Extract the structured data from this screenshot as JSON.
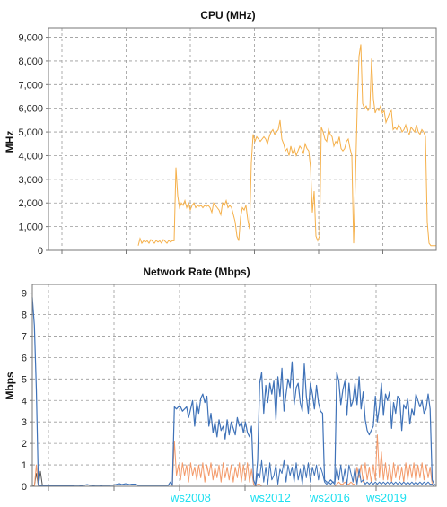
{
  "colors": {
    "cpu_line": "#f5b04a",
    "baseline": "#3a3ac0",
    "net_blue": "#3f72b8",
    "net_orange": "#f39a6a",
    "net_gray": "#555555",
    "grid": "#9a9a9a",
    "annotation": "#1fe0f0"
  },
  "chart_data": [
    {
      "type": "line",
      "title": "CPU (MHz)",
      "ylabel": "MHz",
      "xlabel": "",
      "ylim": [
        0,
        9400
      ],
      "yticks": [
        0,
        1000,
        2000,
        3000,
        4000,
        5000,
        6000,
        7000,
        8000,
        9000
      ],
      "ytick_labels": [
        "0",
        "1,000",
        "2,000",
        "3,000",
        "4,000",
        "5,000",
        "6,000",
        "7,000",
        "8,000",
        "9,000"
      ],
      "grid": true,
      "series": [
        {
          "values": [
            0,
            0,
            0,
            0,
            0,
            0,
            0,
            0,
            0,
            0,
            0,
            0,
            0,
            0,
            0,
            0,
            0,
            0,
            0,
            0,
            0,
            0,
            0,
            0,
            0,
            0,
            0,
            0,
            0,
            0,
            0,
            0,
            0,
            0,
            0,
            0,
            0,
            0,
            0,
            0,
            0,
            0,
            0,
            0,
            0,
            0,
            0,
            0,
            0,
            0,
            200,
            500,
            300,
            400,
            350,
            400,
            300,
            450,
            380,
            300,
            420,
            350,
            400,
            300,
            450,
            380,
            300,
            420,
            350,
            400,
            400,
            3500,
            2300,
            1800,
            2000,
            1900,
            2100,
            1800,
            2000,
            1700,
            1900,
            2000,
            1800,
            1900,
            1850,
            1900,
            1800,
            1900,
            1850,
            1900,
            1800,
            1600,
            2000,
            1900,
            1800,
            1700,
            1500,
            2000,
            1900,
            2100,
            1800,
            1900,
            1800,
            1500,
            1200,
            600,
            400,
            1400,
            1800,
            1700,
            1900,
            1300,
            900,
            3700,
            4900,
            4600,
            4800,
            4700,
            4600,
            4700,
            4800,
            4700,
            4500,
            4800,
            5000,
            5100,
            4900,
            5000,
            5100,
            5500,
            4700,
            4500,
            4200,
            4300,
            4000,
            4400,
            4100,
            4300,
            4000,
            4200,
            4400,
            4300,
            4100,
            4500,
            4300,
            4200,
            3500,
            1600,
            2500,
            600,
            400,
            600,
            5200,
            5000,
            4700,
            4600,
            5100,
            4900,
            4800,
            4400,
            4600,
            4500,
            4800,
            4300,
            4200,
            4300,
            4600,
            4700,
            4300,
            4000,
            300,
            3000,
            6000,
            8200,
            8700,
            6200,
            6000,
            6100,
            5900,
            6000,
            8100,
            6400,
            5800,
            6000,
            5900,
            6100,
            5800,
            5900,
            5400,
            5600,
            5800,
            5900,
            5100,
            5200,
            5100,
            5300,
            5200,
            5000,
            5100,
            5300,
            5000,
            4900,
            5200,
            5100,
            5000,
            5300,
            5000,
            4900,
            5100,
            5000,
            4800,
            1200,
            300,
            200,
            200,
            200,
            200
          ]
        }
      ]
    },
    {
      "type": "line",
      "title": "Network Rate (Mbps)",
      "ylabel": "Mbps",
      "xlabel": "",
      "ylim": [
        0,
        9.4
      ],
      "yticks": [
        0,
        1,
        2,
        3,
        4,
        5,
        6,
        7,
        8,
        9
      ],
      "ytick_labels": [
        "0",
        "1",
        "2",
        "3",
        "4",
        "5",
        "6",
        "7",
        "8",
        "9"
      ],
      "grid": true,
      "annotations": [
        "ws2008",
        "ws2012",
        "ws2016",
        "ws2019"
      ],
      "series": [
        {
          "color_key": "net_blue",
          "values": [
            8.8,
            7.5,
            4.5,
            0.05,
            0.04,
            0.03,
            0.03,
            0.05,
            0.04,
            0.03,
            0.04,
            0.04,
            0.05,
            0.04,
            0.03,
            0.05,
            0.04,
            0.05,
            0.04,
            0.03,
            0.04,
            0.05,
            0.06,
            0.05,
            0.04,
            0.05,
            0.06,
            0.08,
            0.06,
            0.05,
            0.04,
            0.05,
            0.06,
            0.05,
            0.04,
            0.06,
            0.05,
            0.06,
            0.05,
            0.06,
            0.06,
            0.08,
            0.1,
            0.12,
            0.08,
            0.1,
            0.12,
            0.1,
            0.08,
            0.1,
            0.1,
            0.1,
            0.05,
            0.05,
            0.05,
            0.05,
            0.05,
            0.05,
            0.05,
            0.05,
            0.05,
            0.05,
            0.05,
            0.05,
            0.05,
            0.05,
            0.05,
            0.05,
            0.2,
            0.05,
            3.7,
            3.6,
            3.7,
            3.7,
            3.5,
            3.6,
            3.7,
            3.2,
            3.6,
            4.0,
            2.8,
            3.9,
            3.4,
            4.1,
            4.3,
            3.9,
            4.2,
            2.8,
            3.4,
            2.5,
            3.0,
            2.3,
            3.1,
            2.6,
            2.8,
            2.2,
            3.1,
            2.4,
            3.0,
            2.7,
            2.4,
            3.2,
            2.8,
            3.0,
            2.5,
            3.0,
            2.5,
            2.3,
            2.8,
            0.3,
            0.05,
            1.2,
            4.8,
            5.3,
            3.4,
            4.7,
            3.9,
            4.8,
            4.3,
            4.9,
            3.1,
            5.1,
            4.2,
            5.5,
            3.5,
            4.3,
            5.0,
            4.6,
            5.8,
            3.8,
            4.6,
            4.8,
            3.9,
            3.5,
            5.7,
            4.2,
            3.4,
            4.8,
            4.3,
            3.6,
            4.7,
            3.9,
            3.5,
            3.4,
            0.3,
            0.2,
            0.2,
            0.3,
            0.2,
            0.2,
            5.3,
            4.9,
            3.8,
            4.5,
            4.9,
            3.3,
            4.8,
            3.7,
            4.0,
            4.8,
            3.8,
            5.1,
            3.6,
            4.4,
            3.1,
            2.6,
            2.4,
            2.6,
            2.8,
            4.2,
            3.0,
            3.7,
            4.8,
            3.3,
            4.3,
            4.0,
            4.4,
            2.7,
            3.9,
            3.4,
            4.2,
            4.1,
            2.6,
            3.8,
            3.6,
            4.1,
            2.9,
            3.6,
            3.3,
            4.3,
            4.0,
            3.7,
            4.0,
            3.4,
            3.6,
            4.3,
            3.6,
            0.3,
            0.1,
            0.05
          ]
        },
        {
          "color_key": "net_orange",
          "values": [
            0,
            0,
            1.0,
            0,
            0,
            0,
            0,
            0,
            0,
            0,
            0,
            0,
            0,
            0,
            0,
            0,
            0,
            0,
            0,
            0,
            0,
            0,
            0,
            0,
            0,
            0,
            0,
            0,
            0,
            0,
            0,
            0,
            0,
            0,
            0,
            0,
            0,
            0,
            0,
            0,
            0,
            0,
            0,
            0,
            0,
            0,
            0,
            0,
            0,
            0,
            0,
            0,
            0,
            0,
            0,
            0,
            0,
            0,
            0,
            0,
            0,
            0,
            0,
            0,
            0,
            0,
            0,
            0,
            0,
            0,
            2.1,
            0.5,
            1.0,
            0.3,
            1.1,
            0.5,
            1.0,
            0.2,
            1.1,
            0.5,
            0.9,
            0.3,
            1.0,
            0.4,
            1.1,
            0.2,
            1.0,
            0.5,
            1.1,
            0.3,
            0.9,
            0.4,
            1.0,
            0.2,
            1.1,
            0.4,
            0.9,
            0.3,
            1.0,
            0.2,
            0.9,
            0.4,
            1.1,
            0.2,
            1.0,
            0.3,
            1.1,
            0.2,
            0.8,
            0.1,
            0,
            0.1,
            0.1,
            0,
            0,
            0,
            0,
            0,
            0,
            0,
            0,
            0,
            0,
            0,
            0,
            0,
            0,
            0,
            0,
            0,
            0,
            0,
            0,
            0,
            0,
            0,
            0,
            0,
            0,
            0,
            0,
            0,
            0,
            0,
            0,
            0,
            0,
            0,
            0,
            0,
            0.1,
            0.2,
            0.1,
            0.1,
            0.2,
            0.1,
            0.1,
            0.2,
            0.1,
            0.1,
            0.9,
            0.4,
            1.0,
            0.2,
            1.1,
            0.3,
            0.9,
            0.2,
            1.0,
            0.3,
            2.4,
            0.4,
            1.6,
            0.3,
            1.1,
            0.3,
            1.0,
            0.2,
            1.1,
            0.4,
            1.0,
            0.3,
            0.9,
            0.2,
            1.1,
            0.3,
            1.0,
            0.4,
            1.1,
            0.2,
            1.0,
            0.4,
            1.1,
            0.3,
            1.0,
            0.4,
            0.9,
            0.1,
            0,
            0
          ]
        },
        {
          "color_key": "net_blue",
          "values": [
            0,
            0,
            0,
            0,
            0,
            0,
            0,
            0,
            0,
            0,
            0,
            0,
            0,
            0,
            0,
            0,
            0,
            0,
            0,
            0,
            0,
            0,
            0,
            0,
            0,
            0,
            0,
            0,
            0,
            0,
            0,
            0,
            0,
            0,
            0,
            0,
            0,
            0,
            0,
            0,
            0,
            0,
            0,
            0,
            0,
            0,
            0,
            0,
            0,
            0,
            0,
            0,
            0,
            0,
            0,
            0,
            0,
            0,
            0,
            0,
            0,
            0,
            0,
            0,
            0,
            0,
            0,
            0,
            0,
            0,
            0,
            0,
            0,
            0,
            0,
            0,
            0,
            0,
            0,
            0,
            0,
            0,
            0,
            0,
            0,
            0,
            0,
            0,
            0,
            0,
            0,
            0,
            0,
            0,
            0,
            0,
            0,
            0,
            0,
            0,
            0,
            0,
            0,
            0,
            0,
            0,
            0,
            0,
            0,
            0,
            0,
            0.6,
            0.4,
            1.2,
            0.2,
            0.9,
            0.1,
            1.1,
            0.3,
            0.5,
            1.0,
            0.1,
            0.8,
            0.6,
            1.2,
            0.2,
            1.0,
            0.5,
            0.9,
            0.2,
            1.1,
            0.3,
            0.8,
            0.1,
            1.0,
            0.4,
            1.1,
            0.2,
            0.9,
            0.5,
            1.0,
            0.3,
            0.9,
            0.6,
            0.2,
            0.1,
            0.2,
            0.1,
            0.2,
            0.1,
            0.9,
            0.3,
            1.0,
            0.2,
            0.8,
            0.1,
            1.0,
            0.6,
            0.2,
            0.9,
            0.1,
            0.8,
            0.2,
            0.3,
            0.1,
            0.2,
            0.1,
            0.2,
            0.1,
            0.2,
            0.1,
            0.2,
            0.1,
            0.2,
            0.1,
            0.2,
            0.1,
            0.2,
            0.1,
            0.2,
            0.1,
            0.2,
            0.1,
            0.2,
            0.1,
            0.2,
            0.1,
            0.2,
            0.1,
            0.2,
            0.1,
            0.2,
            0.1,
            0.2,
            0.1,
            0.2,
            0.1,
            0.1,
            0,
            0
          ]
        },
        {
          "color_key": "net_gray",
          "values": [
            0.05,
            0.04,
            0.6,
            0.02,
            0.7,
            0.02,
            0,
            0,
            0,
            0
          ]
        }
      ]
    }
  ]
}
